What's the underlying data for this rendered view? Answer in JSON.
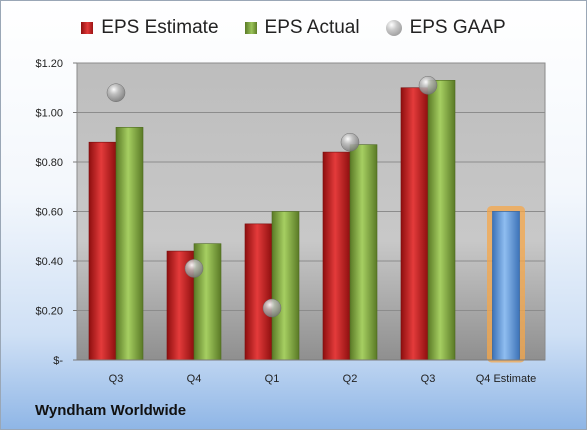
{
  "legend": [
    {
      "label": "EPS Estimate",
      "swatch": "red"
    },
    {
      "label": "EPS Actual",
      "swatch": "green"
    },
    {
      "label": "EPS GAAP",
      "swatch": "ball"
    }
  ],
  "company": "Wyndham Worldwide",
  "colors": {
    "estimate": "#c81e1e",
    "actual": "#7ea23b",
    "gaap": "#9a9a9a",
    "forecast": "#5b9bd5",
    "forecast_glow": "#f5a74a"
  },
  "chart_data": {
    "type": "bar",
    "categories": [
      "Q3",
      "Q4",
      "Q1",
      "Q2",
      "Q3",
      "Q4 Estimate"
    ],
    "series": [
      {
        "name": "EPS Estimate",
        "values": [
          0.88,
          0.44,
          0.55,
          0.84,
          1.1,
          0.6
        ]
      },
      {
        "name": "EPS Actual",
        "values": [
          0.94,
          0.47,
          0.6,
          0.87,
          1.13,
          null
        ]
      },
      {
        "name": "EPS GAAP",
        "values": [
          1.08,
          0.37,
          0.21,
          0.88,
          1.11,
          null
        ]
      }
    ],
    "ylim": [
      0,
      1.2
    ],
    "yticks": [
      {
        "value": 0,
        "label": "$-"
      },
      {
        "value": 0.2,
        "label": "$0.20"
      },
      {
        "value": 0.4,
        "label": "$0.40"
      },
      {
        "value": 0.6,
        "label": "$0.60"
      },
      {
        "value": 0.8,
        "label": "$0.80"
      },
      {
        "value": 1.0,
        "label": "$1.00"
      },
      {
        "value": 1.2,
        "label": "$1.20"
      }
    ],
    "grid": true,
    "legend_position": "top"
  }
}
